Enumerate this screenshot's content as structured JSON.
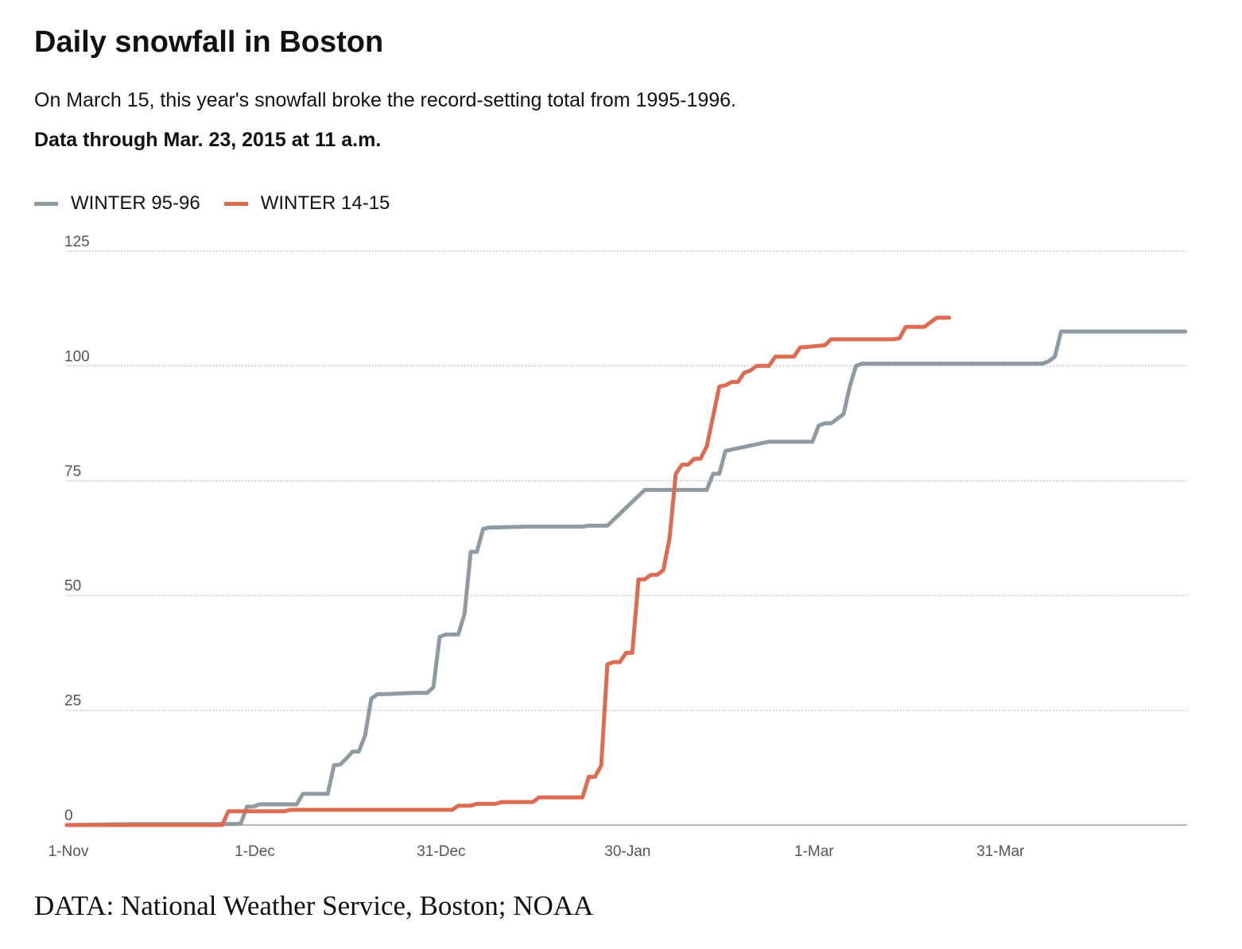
{
  "title": "Daily snowfall in Boston",
  "subtitle": "On March 15, this year's snowfall broke the record-setting total from 1995-1996.",
  "note": "Data through Mar. 23, 2015 at 11 a.m.",
  "source": "DATA: National Weather Service, Boston; NOAA",
  "colors": {
    "winter_95_96": "#8e9ba3",
    "winter_14_15": "#dd6b52",
    "grid": "#b8b8b8",
    "axis": "#a9b8c8"
  },
  "chart_data": {
    "type": "line",
    "title": "Daily snowfall in Boston",
    "xlabel": "",
    "ylabel": "",
    "ylim": [
      0,
      125
    ],
    "yticks": [
      0,
      25,
      50,
      75,
      100,
      125
    ],
    "xlim": [
      "1-Nov",
      "29-Apr"
    ],
    "xticks": [
      {
        "label": "1-Nov",
        "day": 0
      },
      {
        "label": "1-Dec",
        "day": 30
      },
      {
        "label": "31-Dec",
        "day": 60
      },
      {
        "label": "30-Jan",
        "day": 90
      },
      {
        "label": "1-Mar",
        "day": 120
      },
      {
        "label": "31-Mar",
        "day": 150
      }
    ],
    "grid": "horizontal dotted",
    "legend": "top-left",
    "series": [
      {
        "name": "WINTER 95-96",
        "x": [
          "1-Nov",
          "12-Nov",
          "28-Nov",
          "29-Nov",
          "30-Nov",
          "1-Dec",
          "2-Dec",
          "8-Dec",
          "9-Dec",
          "13-Dec",
          "14-Dec",
          "15-Dec",
          "16-Dec",
          "17-Dec",
          "18-Dec",
          "19-Dec",
          "20-Dec",
          "21-Dec",
          "22-Dec",
          "27-Dec",
          "28-Dec",
          "29-Dec",
          "30-Dec",
          "31-Dec",
          "1-Jan",
          "2-Jan",
          "3-Jan",
          "4-Jan",
          "5-Jan",
          "6-Jan",
          "7-Jan",
          "8-Jan",
          "14-Jan",
          "20-Jan",
          "21-Jan",
          "22-Jan",
          "23-Jan",
          "24-Jan",
          "25-Jan",
          "26-Jan",
          "27-Jan",
          "28-Jan",
          "2-Feb",
          "9-Feb",
          "10-Feb",
          "11-Feb",
          "12-Feb",
          "13-Feb",
          "14-Feb",
          "15-Feb",
          "22-Feb",
          "23-Feb",
          "24-Feb",
          "25-Feb",
          "26-Feb",
          "28-Feb",
          "29-Feb",
          "1-Mar",
          "2-Mar",
          "3-Mar",
          "4-Mar",
          "5-Mar",
          "6-Mar",
          "7-Mar",
          "8-Mar",
          "9-Mar",
          "10-Mar",
          "6-Apr",
          "7-Apr",
          "8-Apr",
          "9-Apr",
          "10-Apr",
          "29-Apr"
        ],
        "values": [
          0,
          0.2,
          0.2,
          0.3,
          4,
          4,
          4.5,
          4.5,
          6.8,
          6.8,
          13,
          13.2,
          14.5,
          16,
          16,
          19.5,
          27.5,
          28.5,
          28.5,
          28.8,
          28.8,
          28.8,
          30,
          41,
          41.5,
          41.5,
          41.5,
          46,
          59.5,
          59.5,
          64.5,
          64.8,
          65,
          65,
          65,
          65,
          65,
          65.2,
          65.2,
          65.2,
          65.2,
          66.5,
          73,
          73,
          73,
          73,
          73,
          76.5,
          76.5,
          81.5,
          83.5,
          83.5,
          83.5,
          83.5,
          83.5,
          83.5,
          83.5,
          87,
          87.5,
          87.5,
          88.5,
          89.5,
          95.5,
          100,
          100.5,
          100.5,
          100.5,
          100.5,
          101,
          102,
          107.5,
          107.5,
          107.5
        ]
      },
      {
        "name": "WINTER 14-15",
        "x": [
          "1-Nov",
          "26-Nov",
          "27-Nov",
          "5-Dec",
          "6-Dec",
          "7-Dec",
          "31-Dec",
          "2-Jan",
          "3-Jan",
          "5-Jan",
          "6-Jan",
          "9-Jan",
          "10-Jan",
          "14-Jan",
          "15-Jan",
          "16-Jan",
          "21-Jan",
          "22-Jan",
          "23-Jan",
          "24-Jan",
          "25-Jan",
          "26-Jan",
          "27-Jan",
          "28-Jan",
          "29-Jan",
          "30-Jan",
          "31-Jan",
          "1-Feb",
          "2-Feb",
          "3-Feb",
          "4-Feb",
          "5-Feb",
          "6-Feb",
          "7-Feb",
          "8-Feb",
          "9-Feb",
          "10-Feb",
          "11-Feb",
          "12-Feb",
          "14-Feb",
          "15-Feb",
          "16-Feb",
          "17-Feb",
          "18-Feb",
          "19-Feb",
          "20-Feb",
          "21-Feb",
          "22-Feb",
          "23-Feb",
          "25-Feb",
          "26-Feb",
          "27-Feb",
          "2-Mar",
          "3-Mar",
          "4-Mar",
          "5-Mar",
          "13-Mar",
          "14-Mar",
          "15-Mar",
          "18-Mar",
          "19-Mar",
          "20-Mar",
          "22-Mar"
        ],
        "values": [
          0,
          0,
          3,
          3,
          3,
          3.3,
          3.3,
          3.3,
          4.2,
          4.2,
          4.6,
          4.6,
          5,
          5,
          5,
          6,
          6,
          6,
          6,
          10.5,
          10.5,
          13,
          35,
          35.5,
          35.5,
          37.5,
          37.5,
          53.5,
          53.5,
          54.5,
          54.5,
          55.5,
          62.5,
          76.5,
          78.5,
          78.5,
          79.8,
          79.8,
          82.5,
          95.5,
          95.8,
          96.5,
          96.5,
          98.5,
          99,
          100,
          100,
          100,
          102,
          102,
          102,
          104,
          104.5,
          105.8,
          105.8,
          105.8,
          105.8,
          106,
          108.5,
          108.5,
          109.5,
          110.5,
          110.5
        ]
      }
    ]
  }
}
